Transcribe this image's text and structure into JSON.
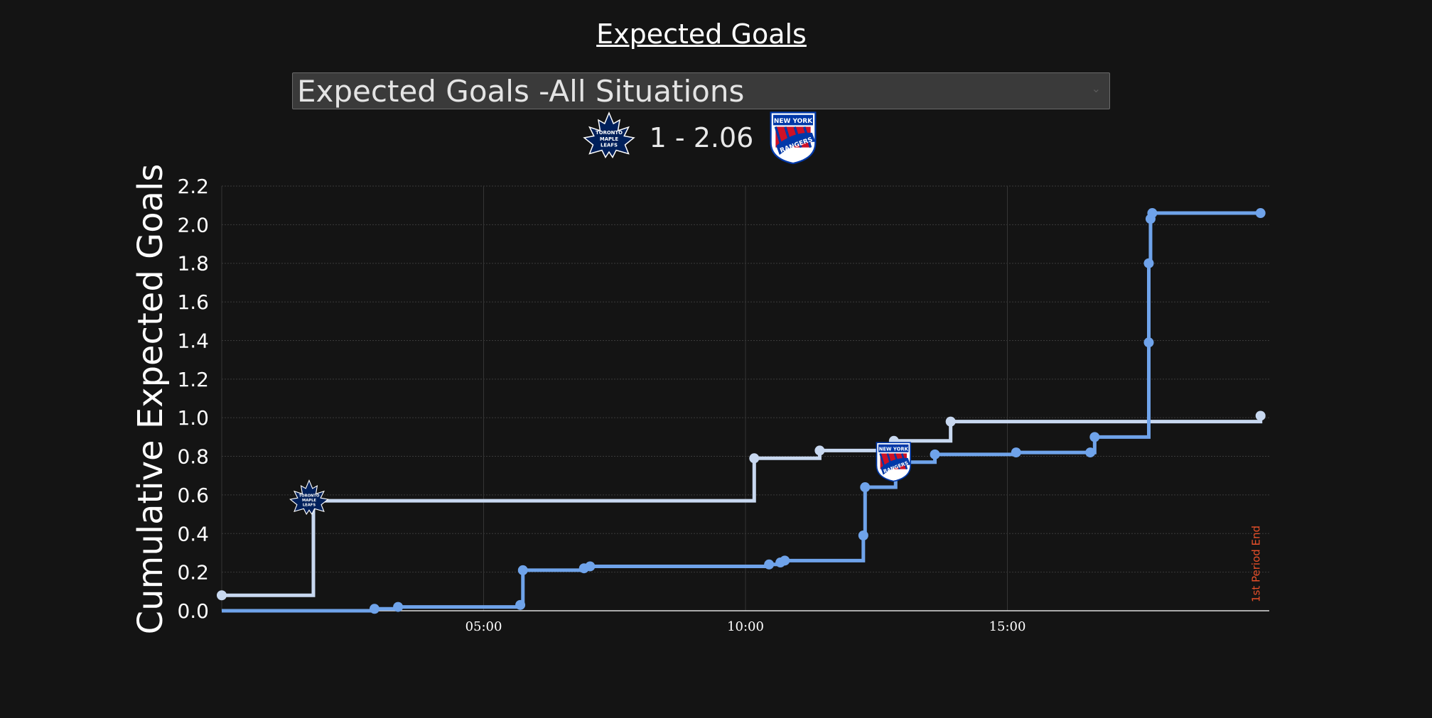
{
  "page": {
    "title": "Expected Goals"
  },
  "selector": {
    "value": "Expected Goals -All Situations"
  },
  "score": {
    "text": "1 - 2.06",
    "home_logo": "toronto-maple-leafs-logo",
    "away_logo": "new-york-rangers-logo"
  },
  "logos": {
    "leafs_text": [
      "TORONTO",
      "MAPLE",
      "LEAFS"
    ],
    "rangers_text": [
      "NEW YORK",
      "RANGERS"
    ]
  },
  "colors": {
    "leafs": "#c8d8f0",
    "rangers": "#6fa3ea",
    "period_end": "#e8502a",
    "leafs_blue": "#00205b",
    "rangers_blue": "#0038a8",
    "rangers_red": "#ce1126"
  },
  "chart_data": {
    "type": "line",
    "step": true,
    "ylabel": "Cumulative Expected Goals",
    "xlabel": "",
    "ylim": [
      0,
      2.2
    ],
    "xlim": [
      "00:00",
      "20:00"
    ],
    "x_ticks": [
      "05:00",
      "10:00",
      "15:00"
    ],
    "y_ticks": [
      "0.0",
      "0.2",
      "0.4",
      "0.6",
      "0.8",
      "1.0",
      "1.2",
      "1.4",
      "1.6",
      "1.8",
      "2.0",
      "2.2"
    ],
    "grid": true,
    "annotations": [
      {
        "text": "1st Period End",
        "x": "19:50",
        "color": "#e8502a"
      }
    ],
    "series": [
      {
        "team": "TOR",
        "points": [
          {
            "x": "00:00",
            "y": 0.08
          },
          {
            "x": "01:45",
            "y": 0.57,
            "goal": true
          },
          {
            "x": "10:10",
            "y": 0.79
          },
          {
            "x": "11:25",
            "y": 0.83
          },
          {
            "x": "12:50",
            "y": 0.88
          },
          {
            "x": "13:55",
            "y": 0.98
          },
          {
            "x": "19:50",
            "y": 1.01
          }
        ]
      },
      {
        "team": "NYR",
        "points": [
          {
            "x": "02:55",
            "y": 0.01
          },
          {
            "x": "03:22",
            "y": 0.02
          },
          {
            "x": "05:42",
            "y": 0.03
          },
          {
            "x": "05:45",
            "y": 0.21
          },
          {
            "x": "06:55",
            "y": 0.22
          },
          {
            "x": "07:02",
            "y": 0.23
          },
          {
            "x": "10:27",
            "y": 0.24
          },
          {
            "x": "10:40",
            "y": 0.25
          },
          {
            "x": "10:45",
            "y": 0.26
          },
          {
            "x": "12:15",
            "y": 0.39
          },
          {
            "x": "12:17",
            "y": 0.64
          },
          {
            "x": "12:52",
            "y": 0.77,
            "goal": true
          },
          {
            "x": "13:37",
            "y": 0.81
          },
          {
            "x": "15:10",
            "y": 0.82
          },
          {
            "x": "16:35",
            "y": 0.82
          },
          {
            "x": "16:40",
            "y": 0.9
          },
          {
            "x": "17:42",
            "y": 1.39
          },
          {
            "x": "17:42",
            "y": 1.8
          },
          {
            "x": "17:44",
            "y": 2.03
          },
          {
            "x": "17:46",
            "y": 2.06
          },
          {
            "x": "19:50",
            "y": 2.06
          }
        ]
      }
    ]
  }
}
